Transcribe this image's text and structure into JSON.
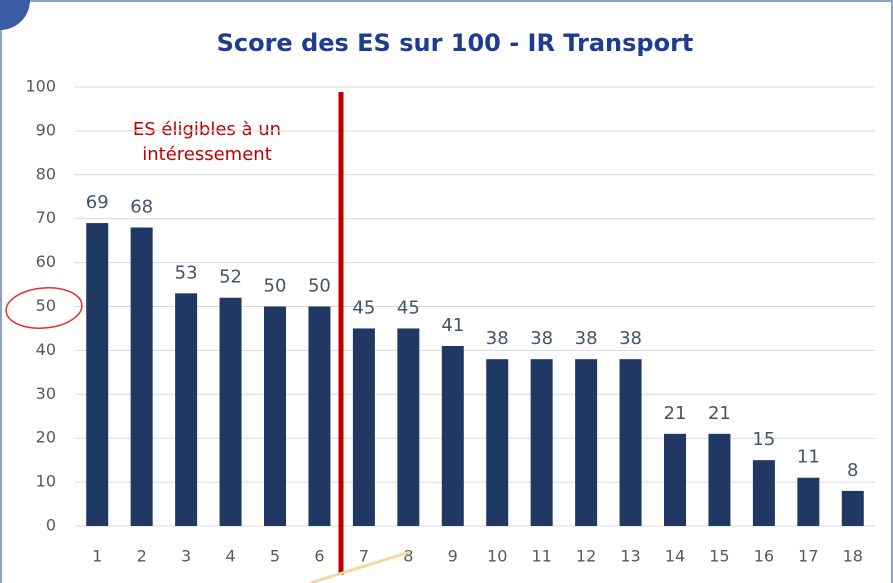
{
  "chart_data": {
    "type": "bar",
    "title": "Score des ES sur 100 - IR Transport",
    "annotation": [
      "ES éligibles à un",
      "intéressement"
    ],
    "categories": [
      "1",
      "2",
      "3",
      "4",
      "5",
      "6",
      "7",
      "8",
      "9",
      "10",
      "11",
      "12",
      "13",
      "14",
      "15",
      "16",
      "17",
      "18"
    ],
    "values": [
      69,
      68,
      53,
      52,
      50,
      50,
      45,
      45,
      41,
      38,
      38,
      38,
      38,
      21,
      21,
      15,
      11,
      8
    ],
    "color": "#1f3864",
    "ylim": [
      0,
      100
    ],
    "yticks": [
      0,
      10,
      20,
      30,
      40,
      50,
      60,
      70,
      80,
      90,
      100
    ],
    "grid": true
  }
}
